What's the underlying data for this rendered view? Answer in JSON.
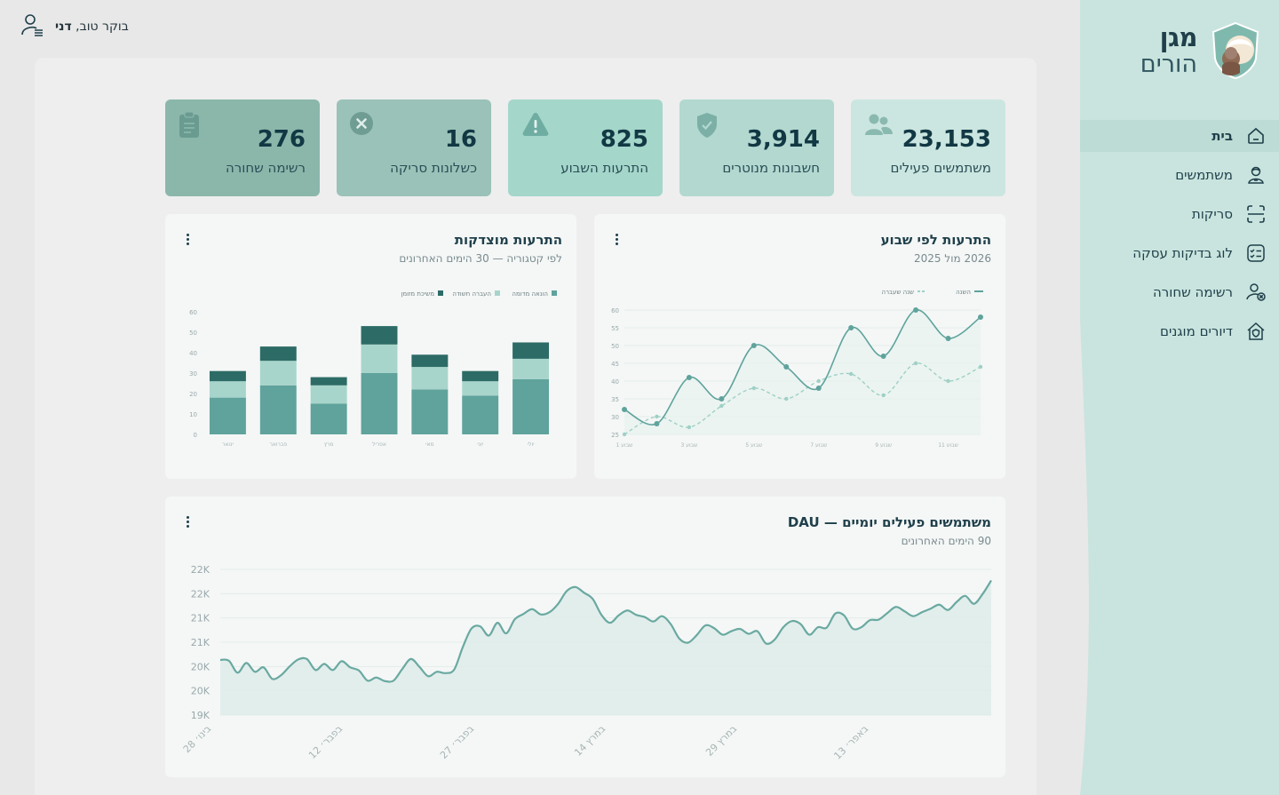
{
  "app": {
    "name": "מגן",
    "name_sub": "הורים"
  },
  "topbar": {
    "greeting": "בוקר טוב,",
    "user": "דני"
  },
  "nav": [
    {
      "label": "בית",
      "icon": "home-icon",
      "active": true
    },
    {
      "label": "משתמשים",
      "icon": "user-icon",
      "active": false
    },
    {
      "label": "סריקות",
      "icon": "scan-icon",
      "active": false
    },
    {
      "label": "לוג בדיקות עסקה",
      "icon": "checklist-icon",
      "active": false
    },
    {
      "label": "רשימה שחורה",
      "icon": "user-blocked-icon",
      "active": false
    },
    {
      "label": "דיורים מוגנים",
      "icon": "shield-house-icon",
      "active": false
    }
  ],
  "stats": [
    {
      "value": "23,153",
      "label": "משתמשים פעילים",
      "icon": "users-icon",
      "color": "#cbe6e0"
    },
    {
      "value": "3,914",
      "label": "חשבונות מנוטרים",
      "icon": "shield-check-icon",
      "color": "#b2d8d0"
    },
    {
      "value": "825",
      "label": "התרעות השבוע",
      "icon": "warning-icon",
      "color": "#a4d6ca"
    },
    {
      "value": "16",
      "label": "כשלונות סריקה",
      "icon": "x-circle-icon",
      "color": "#9ac2b8"
    },
    {
      "value": "276",
      "label": "רשימה שחורה",
      "icon": "clipboard-icon",
      "color": "#8bb7ab"
    }
  ],
  "weekly_card": {
    "title": "התרעות לפי שבוע",
    "subtitle": "2026 מול 2025"
  },
  "category_card": {
    "title": "התרעות מוצדקות",
    "subtitle": "לפי קטגוריה — 30 הימים האחרונים"
  },
  "dau_card": {
    "title": "משתמשים פעילים יומיים — DAU",
    "subtitle": "90 הימים האחרונים"
  },
  "chart_data": [
    {
      "type": "line",
      "legend_position": "top",
      "x": [
        1,
        2,
        3,
        4,
        5,
        6,
        7,
        8,
        9,
        10,
        11,
        12
      ],
      "x_tick_labels": [
        "שבוע 1",
        "שבוע 3",
        "שבוע 5",
        "שבוע 7",
        "שבוע 9",
        "שבוע 11"
      ],
      "ylim": [
        25,
        60
      ],
      "y_ticks": [
        25,
        30,
        35,
        40,
        45,
        50,
        55,
        60
      ],
      "series": [
        {
          "name": "השנה",
          "color": "#5fa39c",
          "style": "solid",
          "values": [
            32,
            28,
            41,
            35,
            50,
            44,
            38,
            55,
            47,
            60,
            52,
            58
          ]
        },
        {
          "name": "שנה שעברה",
          "color": "#9fd0c5",
          "style": "dashed",
          "values": [
            25,
            30,
            27,
            33,
            38,
            35,
            40,
            42,
            36,
            45,
            40,
            44
          ]
        }
      ]
    },
    {
      "type": "bar",
      "stacked": true,
      "legend_position": "top",
      "categories": [
        "ינואר",
        "פברואר",
        "מרץ",
        "אפריל",
        "מאי",
        "יוני",
        "יולי"
      ],
      "ylim": [
        0,
        60
      ],
      "y_ticks": [
        0,
        10,
        20,
        30,
        40,
        50,
        60
      ],
      "series": [
        {
          "name": "הונאה מדומה",
          "color": "#5fa39c",
          "values": [
            18,
            24,
            15,
            30,
            22,
            19,
            27
          ]
        },
        {
          "name": "העברה חשודה",
          "color": "#a8d5cb",
          "values": [
            8,
            12,
            9,
            14,
            11,
            7,
            10
          ]
        },
        {
          "name": "משיכת מזומן",
          "color": "#2d6b66",
          "values": [
            5,
            7,
            4,
            9,
            6,
            5,
            8
          ]
        }
      ]
    },
    {
      "type": "area",
      "color": "#6aa9a1",
      "y_tick_labels": [
        "19K",
        "20K",
        "20K",
        "21K",
        "21K",
        "22K",
        "22K"
      ],
      "ylim": [
        19000,
        22300
      ],
      "x_tick_labels": [
        "28 בינו׳",
        "12 בפבר׳",
        "27 בפבר׳",
        "14 במרץ",
        "29 במרץ",
        "13 באפר׳"
      ],
      "values": [
        20250,
        20230,
        19960,
        20180,
        19980,
        20080,
        19820,
        19900,
        20100,
        20260,
        20270,
        20020,
        20160,
        20020,
        20220,
        20080,
        20010,
        19780,
        19850,
        19770,
        19780,
        20040,
        20270,
        20090,
        19880,
        19980,
        19950,
        20030,
        20540,
        20960,
        21010,
        20800,
        21090,
        20850,
        21170,
        21290,
        21400,
        21280,
        21330,
        21520,
        21810,
        21900,
        21770,
        21630,
        21270,
        21090,
        21260,
        21370,
        21270,
        21220,
        21120,
        21240,
        21060,
        20730,
        20640,
        20810,
        21030,
        20970,
        20820,
        20900,
        20950,
        20840,
        20900,
        20620,
        20710,
        20990,
        21130,
        21060,
        20820,
        20990,
        20980,
        21300,
        21260,
        20960,
        20990,
        21150,
        21160,
        21310,
        21450,
        21350,
        21240,
        21330,
        21410,
        21500,
        21380,
        21560,
        21700,
        21520,
        21740,
        22050
      ]
    }
  ]
}
